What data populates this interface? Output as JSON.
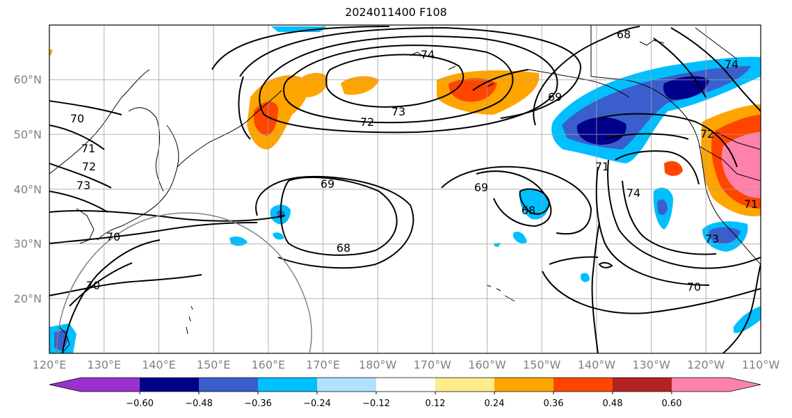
{
  "title": "2024011400 F108",
  "map": {
    "lat_labels": [
      "60°N",
      "50°N",
      "40°N",
      "30°N",
      "20°N"
    ],
    "lon_labels": [
      "120°E",
      "130°E",
      "140°E",
      "150°E",
      "160°E",
      "170°E",
      "180°W",
      "170°W",
      "160°W",
      "150°W",
      "140°W",
      "130°W",
      "120°W",
      "110°W"
    ],
    "contour_labels": [
      "74",
      "73",
      "72",
      "68",
      "69",
      "70",
      "71",
      "72",
      "73",
      "69",
      "68",
      "69",
      "68",
      "71",
      "74",
      "72",
      "73",
      "71",
      "70",
      "70",
      "70",
      "74"
    ]
  },
  "colorbar": {
    "colors": [
      "#9932cc",
      "#00008b",
      "#3a5fcd",
      "#00bfff",
      "#b0e2ff",
      "#ffffff",
      "#ffec8b",
      "#ffa500",
      "#ff4500",
      "#b22222",
      "#ff82ab"
    ],
    "tick_labels": [
      "−0.60",
      "−0.48",
      "−0.36",
      "−0.24",
      "−0.12",
      "0.12",
      "0.24",
      "0.36",
      "0.48",
      "0.60"
    ]
  }
}
